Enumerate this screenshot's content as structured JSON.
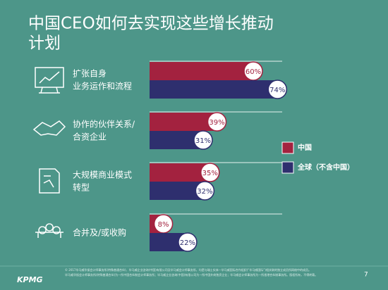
{
  "chart_data": {
    "type": "bar",
    "title": [
      "中国CEO如何去实现这些增长推动",
      "计划"
    ],
    "categories": [
      [
        "扩张自身",
        "业务运作和流程"
      ],
      [
        "协作的伙伴关系/",
        "合资企业"
      ],
      [
        "大规模商业模式",
        "转型"
      ],
      [
        "合并及/或收购"
      ]
    ],
    "series": [
      {
        "name": "中国",
        "color": "#a3223f",
        "values": [
          60,
          39,
          35,
          8
        ],
        "value_labels": [
          "60%",
          "39%",
          "35%",
          "8%"
        ]
      },
      {
        "name": "全球（不含中国）",
        "color": "#2e2f6e",
        "values": [
          74,
          31,
          32,
          22
        ],
        "value_labels": [
          "74%",
          "31%",
          "32%",
          "22%"
        ]
      }
    ],
    "footer": [
      "© 2017毕马威华振会计师事务所(特殊普通合伙)、毕马威企业咨询(中国)有限公司及毕马威会计师事务所，均是与瑞士实体—毕马威国际合作组织(“毕马威国际”)相关联的独立成员所网络中的成员。",
      "毕马威华振会计师事务所(特殊普通合伙)为一所中国合伙制会计师事务所；毕马威企业咨询(中国)有限公司为一所中国外商独资企业；毕马威会计师事务所为一所香港合伙制事务所。版权所有，不得转载。"
    ],
    "logo": "KPMG",
    "page": "7"
  }
}
